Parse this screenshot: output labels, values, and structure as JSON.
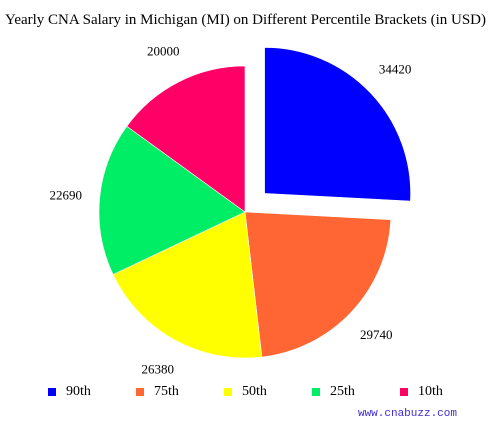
{
  "chart_data": {
    "type": "pie",
    "title": "Yearly CNA Salary in Michigan (MI) on Different Percentile Brackets (in USD)",
    "categories": [
      "90th",
      "75th",
      "50th",
      "25th",
      "10th"
    ],
    "values": [
      34420,
      29740,
      26380,
      22690,
      20000
    ],
    "labels": [
      "34420",
      "29740",
      "26380",
      "22690",
      "20000"
    ],
    "colors": [
      "#0000ff",
      "#ff6633",
      "#ffff00",
      "#00ee66",
      "#ff0066"
    ],
    "exploded": [
      "90th"
    ],
    "start_direction": "top",
    "slice_order": "clockwise",
    "legend_position": "bottom"
  },
  "footer": {
    "watermark": "www.cnabuzz.com"
  }
}
